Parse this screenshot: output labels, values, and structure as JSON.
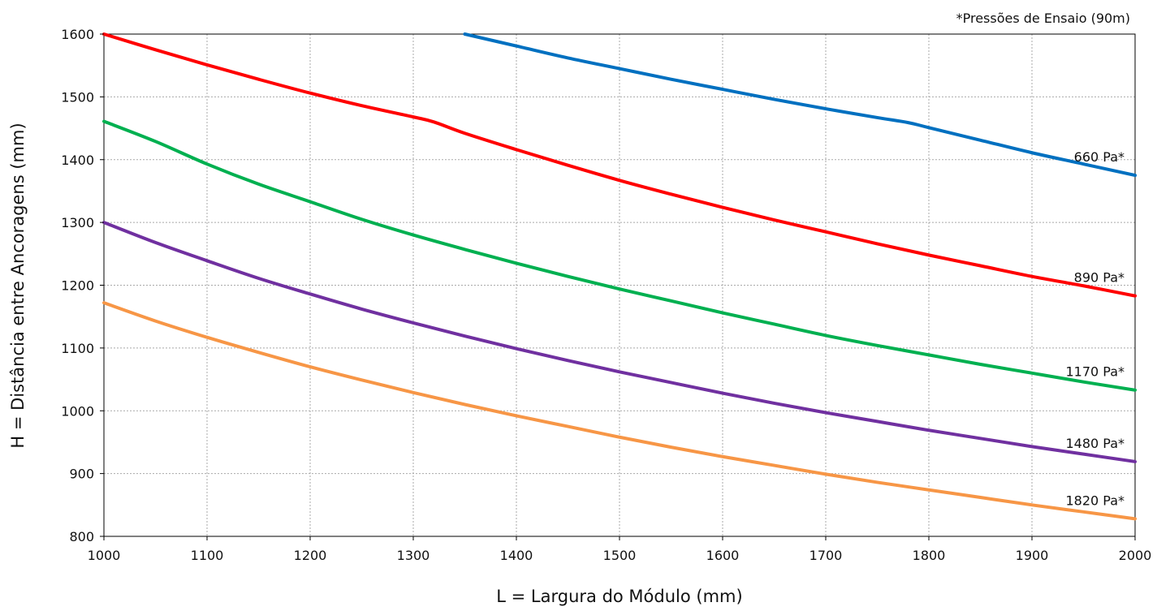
{
  "chart_data": {
    "type": "line",
    "title": "",
    "note": "*Pressões de Ensaio (90m)",
    "xlabel": "L = Largura do Módulo (mm)",
    "ylabel": "H = Distância entre Ancoragens (mm)",
    "xlim": [
      1000,
      2000
    ],
    "ylim": [
      800,
      1600
    ],
    "xticks": [
      "1000",
      "1100",
      "1200",
      "1300",
      "1400",
      "1500",
      "1600",
      "1700",
      "1800",
      "1900",
      "2000"
    ],
    "yticks": [
      "800",
      "900",
      "1000",
      "1100",
      "1200",
      "1300",
      "1400",
      "1500",
      "1600"
    ],
    "grid": true,
    "legend": "inline labels at right end of each curve",
    "series": [
      {
        "name": "660 Pa*",
        "color": "#0070c0",
        "x": [
          1350,
          1400,
          1450,
          1500,
          1550,
          1600,
          1650,
          1700,
          1750,
          1780,
          1800,
          1850,
          1900,
          1950,
          2000
        ],
        "y": [
          1600,
          1581,
          1562,
          1545,
          1528,
          1512,
          1496,
          1481,
          1467,
          1459,
          1451,
          1431,
          1411,
          1393,
          1375
        ]
      },
      {
        "name": "890 Pa*",
        "color": "#ff0000",
        "x": [
          1000,
          1050,
          1100,
          1150,
          1200,
          1250,
          1300,
          1320,
          1350,
          1400,
          1450,
          1500,
          1550,
          1600,
          1650,
          1700,
          1750,
          1800,
          1850,
          1900,
          1950,
          2000
        ],
        "y": [
          1600,
          1575,
          1551,
          1528,
          1506,
          1486,
          1468,
          1460,
          1442,
          1416,
          1391,
          1367,
          1345,
          1324,
          1304,
          1285,
          1266,
          1248,
          1231,
          1214,
          1199,
          1183
        ]
      },
      {
        "name": "1170 Pa*",
        "color": "#00b050",
        "x": [
          1000,
          1050,
          1100,
          1150,
          1200,
          1250,
          1300,
          1350,
          1400,
          1450,
          1500,
          1550,
          1600,
          1650,
          1700,
          1750,
          1800,
          1850,
          1900,
          1950,
          2000
        ],
        "y": [
          1461,
          1429,
          1393,
          1361,
          1333,
          1305,
          1280,
          1257,
          1235,
          1214,
          1194,
          1175,
          1156,
          1138,
          1120,
          1104,
          1089,
          1074,
          1060,
          1046,
          1033
        ]
      },
      {
        "name": "1480 Pa*",
        "color": "#7030a0",
        "x": [
          1000,
          1050,
          1100,
          1150,
          1200,
          1250,
          1300,
          1350,
          1400,
          1450,
          1500,
          1550,
          1600,
          1650,
          1700,
          1750,
          1800,
          1850,
          1900,
          1950,
          2000
        ],
        "y": [
          1300,
          1268,
          1239,
          1211,
          1186,
          1162,
          1140,
          1119,
          1099,
          1080,
          1062,
          1045,
          1028,
          1012,
          997,
          983,
          969,
          956,
          943,
          931,
          919
        ]
      },
      {
        "name": "1820 Pa*",
        "color": "#f79646",
        "x": [
          1000,
          1050,
          1100,
          1150,
          1200,
          1250,
          1300,
          1350,
          1400,
          1450,
          1500,
          1550,
          1600,
          1650,
          1700,
          1750,
          1800,
          1850,
          1900,
          1950,
          2000
        ],
        "y": [
          1172,
          1143,
          1117,
          1093,
          1070,
          1049,
          1029,
          1010,
          992,
          975,
          958,
          942,
          927,
          913,
          899,
          886,
          874,
          862,
          850,
          839,
          828
        ]
      }
    ]
  }
}
